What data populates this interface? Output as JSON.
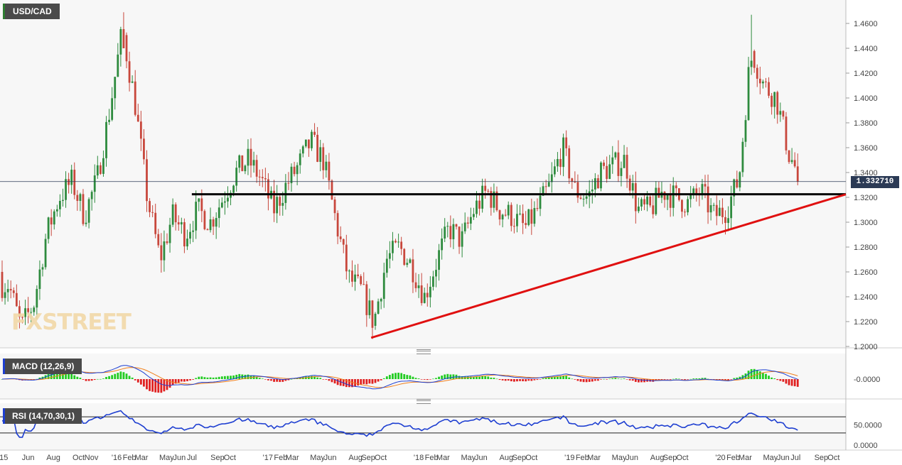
{
  "symbol": "USD/CAD",
  "watermark": "FXSTREET",
  "current_price_label": "1.332710",
  "macd_label": "MACD (12,26,9)",
  "rsi_label": "RSI (14,70,30,1)",
  "colors": {
    "up_candle": "#2e8b3e",
    "down_candle": "#c8473c",
    "trendline": "#e01010",
    "support": "#000000",
    "macd_line": "#1e3fd1",
    "signal_line": "#f07f1a",
    "hist_pos": "#22cc22",
    "hist_neg": "#e02020",
    "rsi_line": "#1e3fd1",
    "price_tag": "#2b3a55"
  },
  "chart_data": [
    {
      "type": "candlestick",
      "name": "USD/CAD weekly",
      "ylim": [
        1.2,
        1.47
      ],
      "y_ticks": [
        "1.4600",
        "1.4400",
        "1.4200",
        "1.4000",
        "1.3800",
        "1.3600",
        "1.3400",
        "1.3200",
        "1.3000",
        "1.2800",
        "1.2600",
        "1.2400",
        "1.2200",
        "1.2000"
      ],
      "x_tick_labels": [
        "'15",
        "Jun",
        "Aug",
        "Oct",
        "Nov",
        "'16",
        "Feb",
        "Mar",
        "May",
        "Jun",
        "Jul",
        "Sep",
        "Oct",
        "'17",
        "Feb",
        "Mar",
        "May",
        "Jun",
        "Aug",
        "Sep",
        "Oct",
        "'18",
        "Feb",
        "Mar",
        "May",
        "Jun",
        "Aug",
        "Sep",
        "Oct",
        "'19",
        "Feb",
        "Mar",
        "May",
        "Jun",
        "Aug",
        "Sep",
        "Oct",
        "'20",
        "Feb",
        "Mar",
        "May",
        "Jun",
        "Jul",
        "Sep",
        "Oct"
      ],
      "close_path": [
        [
          "2015-04",
          1.25
        ],
        [
          "2015-05",
          1.215
        ],
        [
          "2015-06",
          1.235
        ],
        [
          "2015-07",
          1.29
        ],
        [
          "2015-08",
          1.32
        ],
        [
          "2015-09",
          1.333
        ],
        [
          "2015-10",
          1.305
        ],
        [
          "2015-11",
          1.335
        ],
        [
          "2015-12",
          1.39
        ],
        [
          "2016-01",
          1.455
        ],
        [
          "2016-02",
          1.395
        ],
        [
          "2016-03",
          1.32
        ],
        [
          "2016-04",
          1.27
        ],
        [
          "2016-05",
          1.305
        ],
        [
          "2016-06",
          1.29
        ],
        [
          "2016-07",
          1.31
        ],
        [
          "2016-08",
          1.3
        ],
        [
          "2016-09",
          1.32
        ],
        [
          "2016-10",
          1.34
        ],
        [
          "2016-11",
          1.35
        ],
        [
          "2016-12",
          1.335
        ],
        [
          "2017-01",
          1.31
        ],
        [
          "2017-02",
          1.33
        ],
        [
          "2017-03",
          1.345
        ],
        [
          "2017-04",
          1.365
        ],
        [
          "2017-05",
          1.35
        ],
        [
          "2017-06",
          1.3
        ],
        [
          "2017-07",
          1.255
        ],
        [
          "2017-08",
          1.245
        ],
        [
          "2017-09",
          1.22
        ],
        [
          "2017-10",
          1.27
        ],
        [
          "2017-11",
          1.28
        ],
        [
          "2017-12",
          1.265
        ],
        [
          "2018-01",
          1.24
        ],
        [
          "2018-02",
          1.27
        ],
        [
          "2018-03",
          1.295
        ],
        [
          "2018-04",
          1.285
        ],
        [
          "2018-05",
          1.31
        ],
        [
          "2018-06",
          1.325
        ],
        [
          "2018-07",
          1.31
        ],
        [
          "2018-08",
          1.305
        ],
        [
          "2018-09",
          1.295
        ],
        [
          "2018-10",
          1.31
        ],
        [
          "2018-11",
          1.33
        ],
        [
          "2018-12",
          1.36
        ],
        [
          "2019-01",
          1.325
        ],
        [
          "2019-02",
          1.32
        ],
        [
          "2019-03",
          1.34
        ],
        [
          "2019-04",
          1.345
        ],
        [
          "2019-05",
          1.35
        ],
        [
          "2019-06",
          1.31
        ],
        [
          "2019-07",
          1.31
        ],
        [
          "2019-08",
          1.325
        ],
        [
          "2019-09",
          1.32
        ],
        [
          "2019-10",
          1.315
        ],
        [
          "2019-11",
          1.325
        ],
        [
          "2019-12",
          1.305
        ],
        [
          "2020-01",
          1.31
        ],
        [
          "2020-02",
          1.335
        ],
        [
          "2020-03",
          1.44
        ],
        [
          "2020-04",
          1.41
        ],
        [
          "2020-05",
          1.4
        ],
        [
          "2020-06",
          1.355
        ],
        [
          "2020-07",
          1.3327
        ]
      ],
      "extremes": {
        "2016_high": 1.469,
        "2017_low": 1.206,
        "2020_high": 1.467
      },
      "annotations": {
        "horizontal_support": 1.3225,
        "ascending_trendline": {
          "from": [
            "2017-09",
            1.207
          ],
          "to": [
            "2020-10",
            1.327
          ]
        }
      },
      "last_price": 1.33271
    },
    {
      "type": "macd",
      "name": "MACD (12,26,9)",
      "y_ticks": [
        "-0.0000"
      ],
      "note_values": "histogram positive in late 2015/2016, deeply negative mid-2016 and mid-2017, positive peak after 2020 spike, negative at end"
    },
    {
      "type": "line",
      "name": "RSI (14,70,30,1)",
      "ylim": [
        0,
        100
      ],
      "y_ticks": [
        "50.0000",
        "0.0000"
      ],
      "levels": [
        70,
        30
      ]
    }
  ]
}
